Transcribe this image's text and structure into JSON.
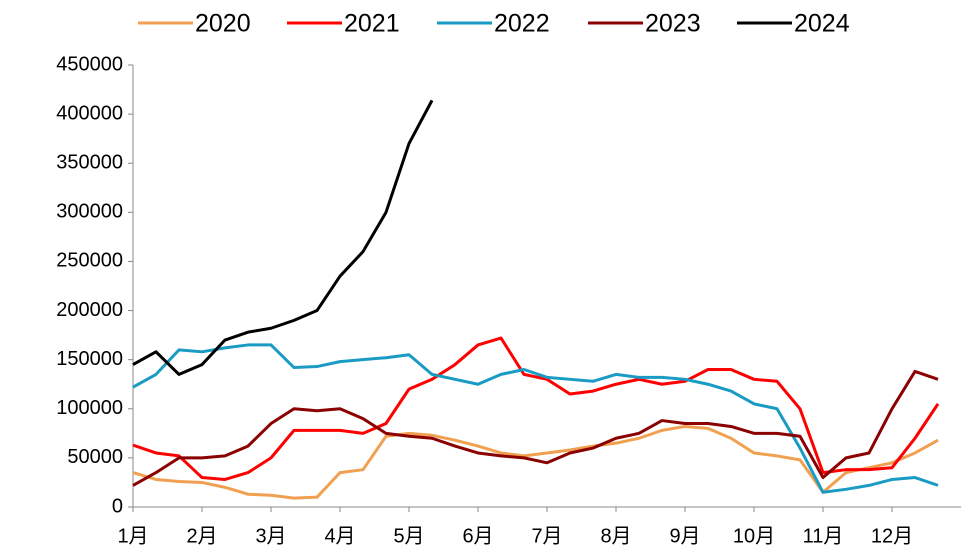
{
  "chart_data": {
    "type": "line",
    "categories": [
      "1月",
      null,
      null,
      "2月",
      null,
      null,
      "3月",
      null,
      null,
      "4月",
      null,
      null,
      "5月",
      null,
      null,
      "6月",
      null,
      null,
      "7月",
      null,
      null,
      "8月",
      null,
      null,
      "9月",
      null,
      null,
      "10月",
      null,
      null,
      "11月",
      null,
      null,
      "12月",
      null,
      null
    ],
    "ylim": [
      0,
      450000
    ],
    "yticks": [
      0,
      50000,
      100000,
      150000,
      200000,
      250000,
      300000,
      350000,
      400000,
      450000
    ],
    "legend": "top",
    "series": [
      {
        "name": "2020",
        "color": "#f0a050",
        "values": [
          35000,
          28000,
          26000,
          25000,
          20000,
          13000,
          12000,
          9000,
          10000,
          35000,
          38000,
          72000,
          75000,
          73000,
          68000,
          62000,
          55000,
          52000,
          55000,
          58000,
          62000,
          65000,
          70000,
          78000,
          82000,
          80000,
          70000,
          55000,
          52000,
          48000,
          15000,
          35000,
          40000,
          45000,
          55000,
          68000
        ]
      },
      {
        "name": "2021",
        "color": "#ff0000",
        "values": [
          63000,
          55000,
          52000,
          30000,
          28000,
          35000,
          50000,
          78000,
          78000,
          78000,
          75000,
          85000,
          120000,
          130000,
          145000,
          165000,
          172000,
          135000,
          130000,
          115000,
          118000,
          125000,
          130000,
          125000,
          128000,
          140000,
          140000,
          130000,
          128000,
          100000,
          35000,
          38000,
          38000,
          40000,
          70000,
          105000
        ]
      },
      {
        "name": "2022",
        "color": "#1a9bc4",
        "values": [
          122000,
          135000,
          160000,
          158000,
          162000,
          165000,
          165000,
          142000,
          143000,
          148000,
          150000,
          152000,
          155000,
          135000,
          130000,
          125000,
          135000,
          140000,
          132000,
          130000,
          128000,
          135000,
          132000,
          132000,
          130000,
          125000,
          118000,
          105000,
          100000,
          60000,
          15000,
          18000,
          22000,
          28000,
          30000,
          22000
        ]
      },
      {
        "name": "2023",
        "color": "#8b0000",
        "values": [
          22000,
          35000,
          50000,
          50000,
          52000,
          62000,
          85000,
          100000,
          98000,
          100000,
          90000,
          75000,
          72000,
          70000,
          62000,
          55000,
          52000,
          50000,
          45000,
          55000,
          60000,
          70000,
          75000,
          88000,
          85000,
          85000,
          82000,
          75000,
          75000,
          72000,
          30000,
          50000,
          55000,
          100000,
          138000,
          130000
        ]
      },
      {
        "name": "2024",
        "color": "#000000",
        "values": [
          145000,
          158000,
          135000,
          145000,
          170000,
          178000,
          182000,
          190000,
          200000,
          235000,
          260000,
          300000,
          370000,
          414000,
          null,
          null,
          null,
          null,
          null,
          null,
          null,
          null,
          null,
          null,
          null,
          null,
          null,
          null,
          null,
          null,
          null,
          null,
          null,
          null,
          null,
          null
        ]
      }
    ]
  }
}
